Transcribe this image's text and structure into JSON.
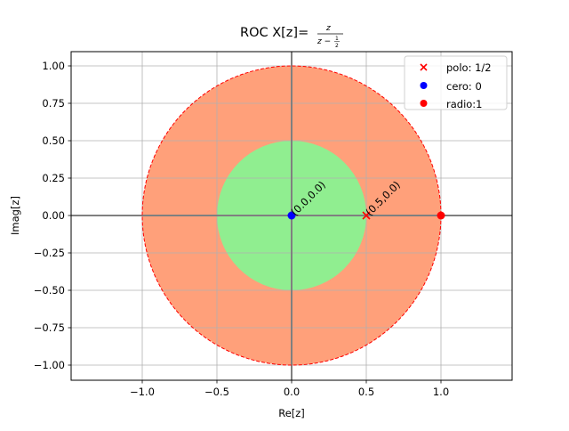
{
  "chart_data": {
    "type": "scatter",
    "title": "ROC X[z]=z/(z-1/2)",
    "title_parts": {
      "prefix": "ROC X[z]=",
      "numerator": "z",
      "denominator": "z − ",
      "frac_num": "1",
      "frac_den": "2"
    },
    "xlabel": "Re[z]",
    "ylabel": "Imag[z]",
    "xlim": [
      -1.48,
      1.48
    ],
    "ylim": [
      -1.1,
      1.1
    ],
    "grid": true,
    "legend_position": "upper right",
    "x_ticks": [
      "−1.0",
      "−0.5",
      "0.0",
      "0.5",
      "1.0"
    ],
    "x_tick_values": [
      -1.0,
      -0.5,
      0.0,
      0.5,
      1.0
    ],
    "y_ticks": [
      "1.00",
      "0.75",
      "0.50",
      "0.25",
      "0.00",
      "−0.25",
      "−0.50",
      "−0.75",
      "−1.00"
    ],
    "y_tick_values": [
      1.0,
      0.75,
      0.5,
      0.25,
      0.0,
      -0.25,
      -0.5,
      -0.75,
      -1.0
    ],
    "regions": [
      {
        "name": "roc-outer-disk",
        "shape": "circle",
        "center": [
          0,
          0
        ],
        "radius": 1.0,
        "fill": "#ffa07a",
        "edge": "#ff0000",
        "edge_style": "dashed"
      },
      {
        "name": "excluded-inner-disk",
        "shape": "circle",
        "center": [
          0,
          0
        ],
        "radius": 0.5,
        "fill": "#90ee90"
      }
    ],
    "series": [
      {
        "name": "polo: 1/2",
        "marker": "x",
        "color": "#ff0000",
        "points": [
          [
            0.5,
            0.0
          ]
        ]
      },
      {
        "name": "cero: 0",
        "marker": "o",
        "color": "#0000ff",
        "points": [
          [
            0.0,
            0.0
          ]
        ]
      },
      {
        "name": "radio:1",
        "marker": "o",
        "color": "#ff0000",
        "points": [
          [
            1.0,
            0.0
          ]
        ]
      }
    ],
    "annotations": [
      {
        "text": "(0.0,0.0)",
        "x": 0.0,
        "y": 0.0,
        "rotation": 45
      },
      {
        "text": "(0.5,0.0)",
        "x": 0.5,
        "y": 0.0,
        "rotation": 45
      }
    ]
  },
  "legend": {
    "items": [
      {
        "label": "polo: 1/2",
        "marker": "x",
        "color": "#ff0000"
      },
      {
        "label": "cero: 0",
        "marker": "o",
        "color": "#0000ff"
      },
      {
        "label": "radio:1",
        "marker": "o",
        "color": "#ff0000"
      }
    ]
  },
  "colors": {
    "roc_fill": "#ffa07a",
    "inner_fill": "#90ee90",
    "grid": "#b0b0b0",
    "axis_lines": "#808080",
    "circle_edge": "#ff0000"
  }
}
